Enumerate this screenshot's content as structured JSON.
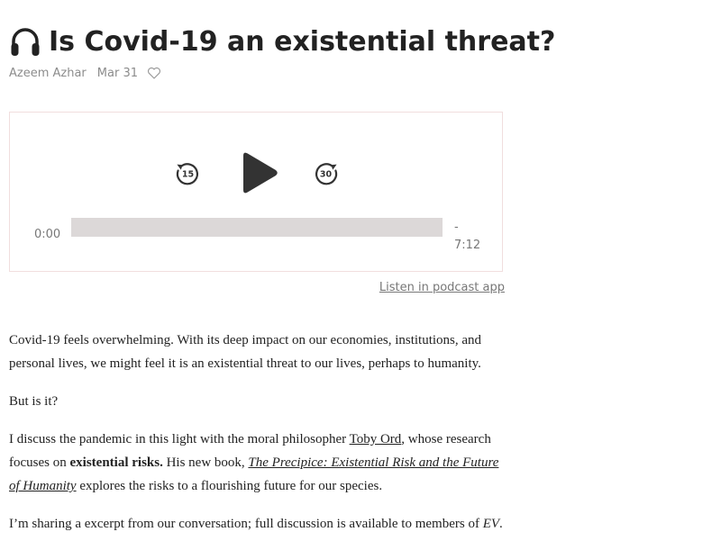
{
  "post": {
    "title": "Is Covid-19 an existential threat?",
    "author": "Azeem Azhar",
    "date": "Mar 31"
  },
  "player": {
    "skip_back_seconds": "15",
    "skip_forward_seconds": "30",
    "time_elapsed": "0:00",
    "time_remaining_sign": "-",
    "time_remaining": "7:12",
    "progress_fraction": 0,
    "podcast_link": "Listen in podcast app"
  },
  "article": {
    "p1": "Covid-19 feels overwhelming. With its deep impact on our economies, institutions, and personal lives, we might feel it is an existential threat to our lives, perhaps to humanity.",
    "p2": "But is it?",
    "p3_before_link": "I discuss the pandemic in this light with the moral philosopher ",
    "p3_link": "Toby Ord",
    "p3_after_link": ", whose research focuses on ",
    "p3_bold": "existential risks.",
    "p3_after_bold": " His new book,  ",
    "p3_book": "The Precipice: Existential Risk and the Future of Humanity",
    "p3_end": " explores the risks to a flourishing future for our species.",
    "p4_before": "I’m sharing a excerpt from our conversation; full discussion is available to members of ",
    "p4_ev": "EV",
    "p4_end": "."
  },
  "icons": {
    "title": "headphones-icon",
    "like": "heart-icon",
    "skip_back": "rewind-15-icon",
    "play": "play-icon",
    "skip_forward": "forward-30-icon"
  },
  "colors": {
    "text": "#222222",
    "muted": "#8c8c8c",
    "player_border": "#f1dede",
    "progress_track": "#dcd8d8",
    "controls": "#333333"
  }
}
